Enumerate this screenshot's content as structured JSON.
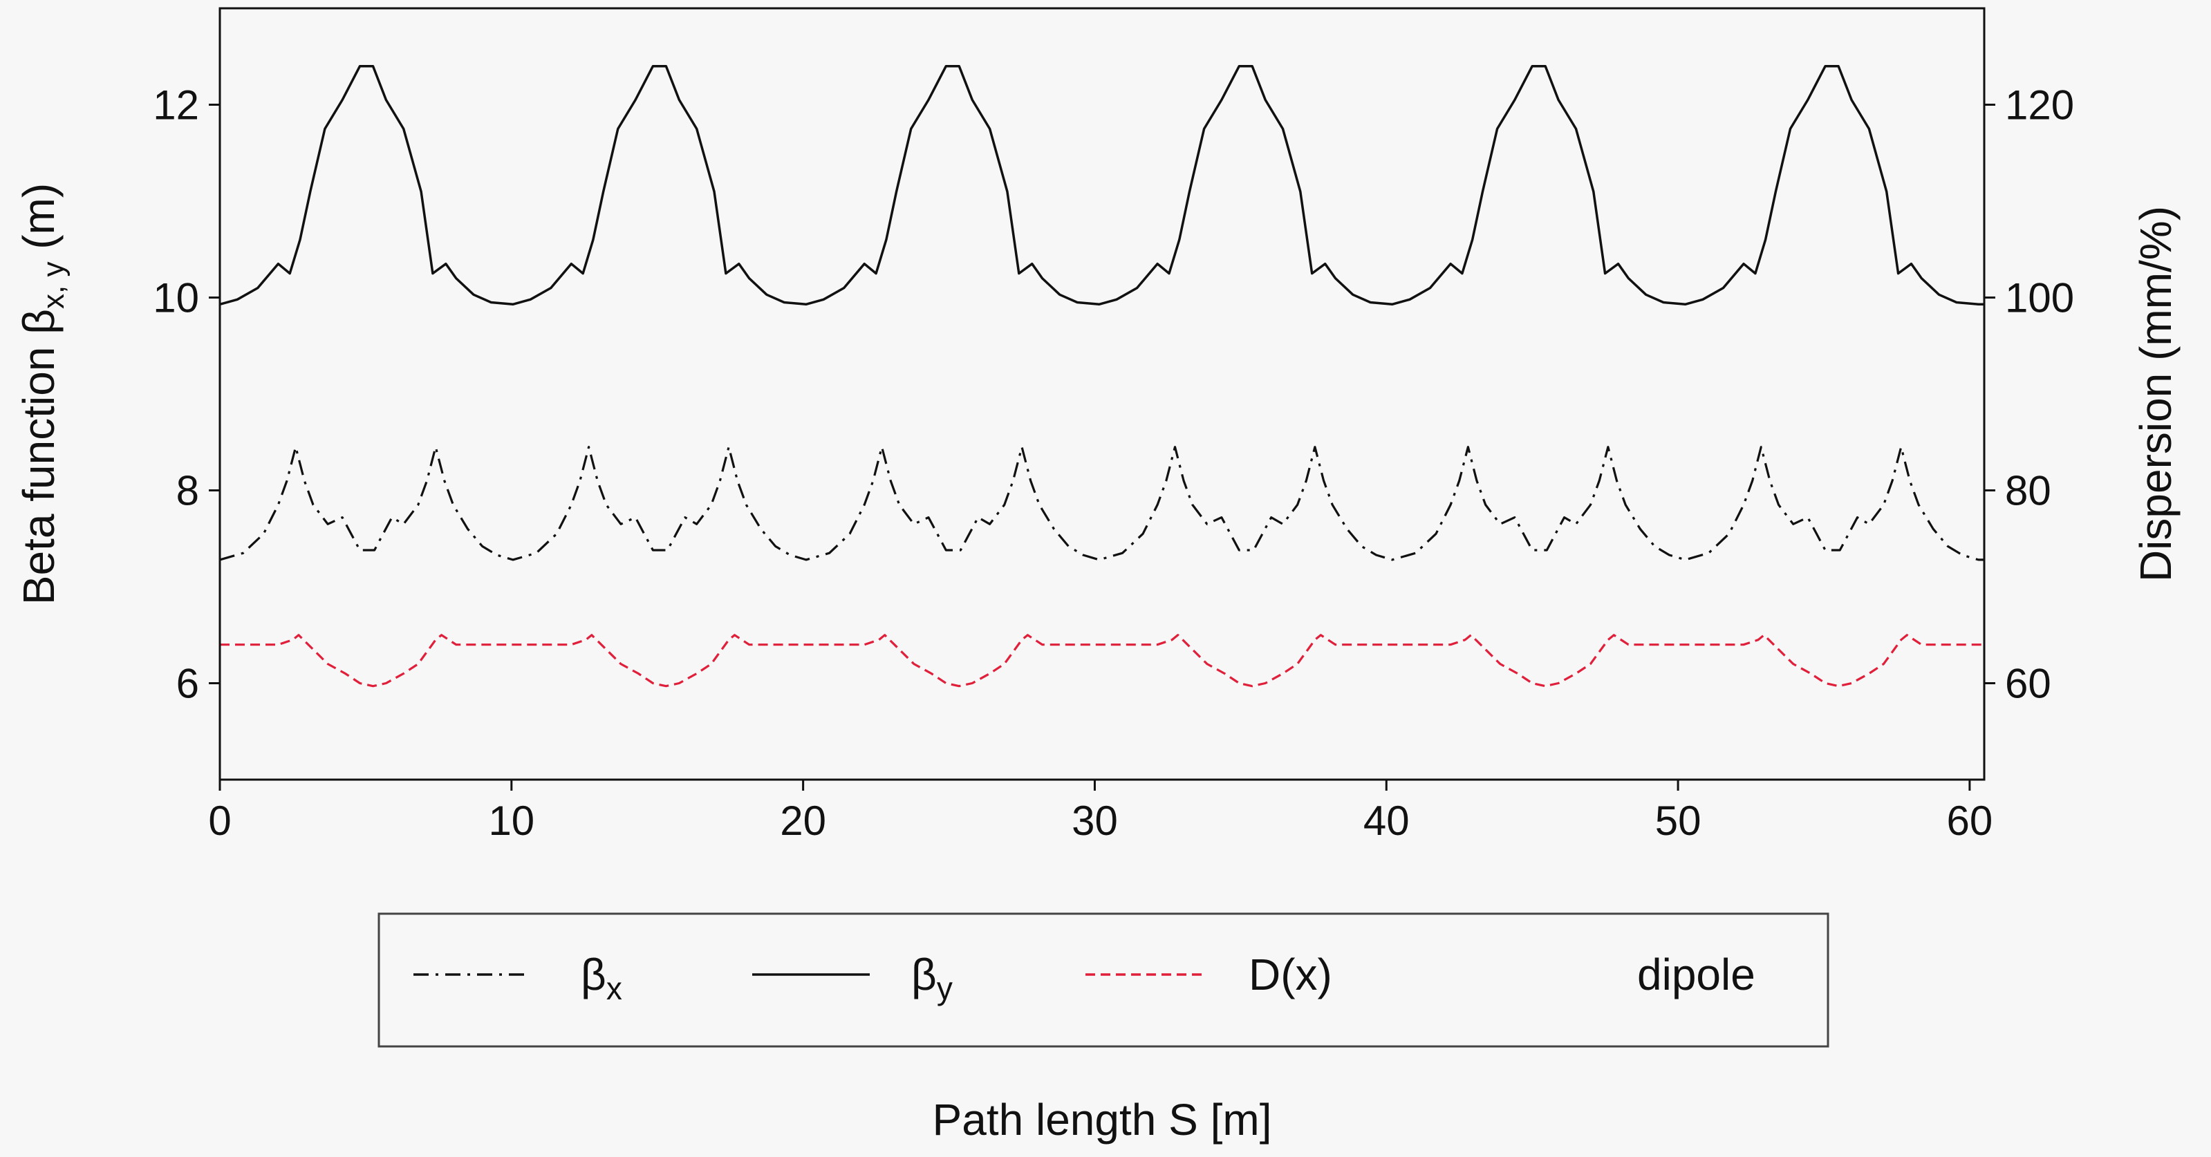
{
  "chart_data": {
    "type": "line",
    "xlabel": "Path length S [m]",
    "ylabel": {
      "main": "Beta function β",
      "sub": "x, y",
      "unit": " (m)"
    },
    "y2label": "Dispersion (mm/%)",
    "xlim": [
      0,
      60.5
    ],
    "ylim": [
      5,
      13
    ],
    "y2lim": [
      50,
      130
    ],
    "xticks": [
      0,
      10,
      20,
      30,
      40,
      50,
      60
    ],
    "yticks": [
      6,
      8,
      10,
      12
    ],
    "y2ticks": [
      60,
      80,
      100,
      120
    ],
    "series": [
      {
        "name": "βx",
        "name_main": "β",
        "name_sub": "x",
        "style": "dashdot",
        "color": "#111111",
        "axis": "left",
        "x": [
          0,
          0.8,
          1.5,
          2.0,
          2.3,
          2.6,
          2.9,
          3.2,
          3.7,
          4.2,
          4.5,
          4.8,
          5.05,
          5.3,
          5.6,
          5.9,
          6.3,
          6.8,
          7.1,
          7.4,
          7.7,
          8.0,
          8.5,
          9.0,
          9.5,
          10.05
        ],
        "y": [
          7.28,
          7.35,
          7.55,
          7.85,
          8.1,
          8.45,
          8.1,
          7.85,
          7.65,
          7.72,
          7.55,
          7.38,
          7.38,
          7.38,
          7.55,
          7.72,
          7.65,
          7.85,
          8.1,
          8.45,
          8.1,
          7.85,
          7.6,
          7.42,
          7.33,
          7.28
        ],
        "period": 10.05,
        "repeat": 6
      },
      {
        "name": "βy",
        "name_main": "β",
        "name_sub": "y",
        "style": "solid",
        "color": "#111111",
        "axis": "left",
        "x": [
          0,
          0.6,
          1.3,
          2.0,
          2.4,
          2.75,
          3.1,
          3.6,
          4.2,
          4.8,
          5.25,
          5.7,
          6.3,
          6.9,
          7.3,
          7.75,
          8.1,
          8.7,
          9.3,
          10.05
        ],
        "y": [
          9.93,
          9.98,
          10.1,
          10.35,
          10.25,
          10.6,
          11.1,
          11.75,
          12.05,
          12.4,
          12.4,
          12.05,
          11.75,
          11.1,
          10.25,
          10.35,
          10.2,
          10.03,
          9.95,
          9.93
        ],
        "period": 10.05,
        "repeat": 6
      },
      {
        "name": "D(x)",
        "name_main": "D(x)",
        "name_sub": "",
        "style": "dashed",
        "color": "#e0203a",
        "axis": "right",
        "x": [
          0,
          2.0,
          2.5,
          2.7,
          3.2,
          3.7,
          4.3,
          4.8,
          5.25,
          5.7,
          6.3,
          6.8,
          7.4,
          7.6,
          8.1,
          10.05
        ],
        "y": [
          64,
          64,
          64.5,
          65,
          63.5,
          62,
          61,
          60,
          59.7,
          60,
          61,
          62,
          64.5,
          65,
          64,
          64
        ],
        "period": 10.05,
        "repeat": 6
      }
    ],
    "legend": {
      "position": "below",
      "items": [
        {
          "main": "β",
          "sub": "x",
          "style": "dashdot",
          "color": "#111111"
        },
        {
          "main": "β",
          "sub": "y",
          "style": "solid",
          "color": "#111111"
        },
        {
          "main": "D(x)",
          "sub": "",
          "style": "dashed",
          "color": "#e0203a"
        },
        {
          "main": "dipole",
          "sub": "",
          "style": "none",
          "color": ""
        }
      ]
    },
    "grid": false
  }
}
